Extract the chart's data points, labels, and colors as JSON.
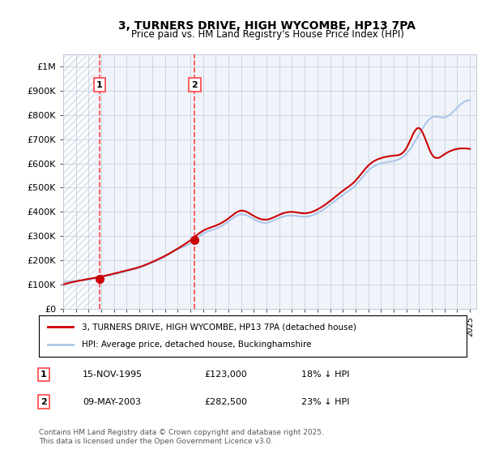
{
  "title": "3, TURNERS DRIVE, HIGH WYCOMBE, HP13 7PA",
  "subtitle": "Price paid vs. HM Land Registry's House Price Index (HPI)",
  "ylabel": "",
  "ylim": [
    0,
    1050000
  ],
  "yticks": [
    0,
    100000,
    200000,
    300000,
    400000,
    500000,
    600000,
    700000,
    800000,
    900000,
    1000000
  ],
  "ytick_labels": [
    "£0",
    "£100K",
    "£200K",
    "£300K",
    "£400K",
    "£500K",
    "£600K",
    "£700K",
    "£800K",
    "£900K",
    "£1M"
  ],
  "hpi_color": "#aec6e8",
  "price_color": "#cc0000",
  "dashed_line_color": "#ff4444",
  "background_color": "#ffffff",
  "plot_bg_color": "#f0f4fa",
  "hatch_color": "#d0d8e8",
  "grid_color": "#c0c8d8",
  "transaction1": {
    "date": "15-NOV-1995",
    "price": 123000,
    "label": "1",
    "year": 1995.87
  },
  "transaction2": {
    "date": "09-MAY-2003",
    "price": 282500,
    "label": "2",
    "year": 2003.35
  },
  "legend_line1": "3, TURNERS DRIVE, HIGH WYCOMBE, HP13 7PA (detached house)",
  "legend_line2": "HPI: Average price, detached house, Buckinghamshire",
  "footnote": "Contains HM Land Registry data © Crown copyright and database right 2025.\nThis data is licensed under the Open Government Licence v3.0.",
  "table": [
    {
      "num": "1",
      "date": "15-NOV-1995",
      "price": "£123,000",
      "hpi": "18% ↓ HPI"
    },
    {
      "num": "2",
      "date": "09-MAY-2003",
      "price": "£282,500",
      "hpi": "23% ↓ HPI"
    }
  ],
  "hpi_years": [
    1993,
    1994,
    1995,
    1996,
    1997,
    1998,
    1999,
    2000,
    2001,
    2002,
    2003,
    2004,
    2005,
    2006,
    2007,
    2008,
    2009,
    2010,
    2011,
    2012,
    2013,
    2014,
    2015,
    2016,
    2017,
    2018,
    2019,
    2020,
    2021,
    2022,
    2023,
    2024,
    2025
  ],
  "hpi_values": [
    110000,
    115000,
    120000,
    130000,
    142000,
    155000,
    170000,
    190000,
    215000,
    245000,
    270000,
    310000,
    330000,
    360000,
    390000,
    370000,
    355000,
    375000,
    385000,
    380000,
    395000,
    430000,
    470000,
    510000,
    570000,
    600000,
    610000,
    640000,
    720000,
    790000,
    790000,
    830000,
    860000
  ],
  "price_years": [
    1993,
    1995,
    1996,
    1997,
    1998,
    1999,
    2000,
    2001,
    2002,
    2003,
    2004,
    2005,
    2006,
    2007,
    2008,
    2009,
    2010,
    2011,
    2012,
    2013,
    2014,
    2015,
    2016,
    2017,
    2018,
    2019,
    2020,
    2021,
    2022,
    2023,
    2024,
    2025
  ],
  "price_values": [
    100000,
    123000,
    133000,
    145000,
    158000,
    172000,
    193000,
    218000,
    248000,
    282500,
    322000,
    343000,
    373000,
    405000,
    383000,
    368000,
    388000,
    400000,
    394000,
    410000,
    445000,
    487000,
    529000,
    591000,
    622000,
    632000,
    663000,
    746000,
    638000,
    638000,
    660000,
    660000
  ]
}
